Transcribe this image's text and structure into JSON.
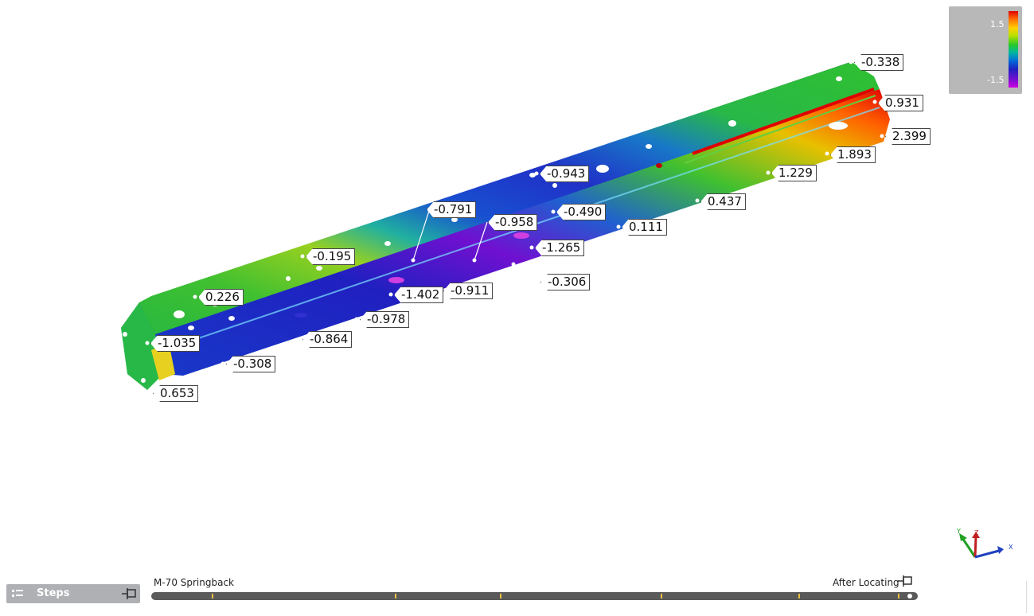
{
  "legend": {
    "max_label": "1.5",
    "min_label": "-1.5"
  },
  "callouts": [
    {
      "id": "c1",
      "value": "-0.338"
    },
    {
      "id": "c2",
      "value": "0.931"
    },
    {
      "id": "c3",
      "value": "2.399"
    },
    {
      "id": "c4",
      "value": "1.893"
    },
    {
      "id": "c5",
      "value": "1.229"
    },
    {
      "id": "c6",
      "value": "-0.943"
    },
    {
      "id": "c7",
      "value": "0.437"
    },
    {
      "id": "c8",
      "value": "-0.791"
    },
    {
      "id": "c9",
      "value": "-0.490"
    },
    {
      "id": "c10",
      "value": "-0.958"
    },
    {
      "id": "c11",
      "value": "0.111"
    },
    {
      "id": "c12",
      "value": "-1.265"
    },
    {
      "id": "c13",
      "value": "-0.195"
    },
    {
      "id": "c14",
      "value": "-0.306"
    },
    {
      "id": "c15",
      "value": "0.226"
    },
    {
      "id": "c16",
      "value": "-1.402"
    },
    {
      "id": "c17",
      "value": "-0.911"
    },
    {
      "id": "c18",
      "value": "-0.978"
    },
    {
      "id": "c19",
      "value": "-1.035"
    },
    {
      "id": "c20",
      "value": "-0.864"
    },
    {
      "id": "c21",
      "value": "-0.308"
    },
    {
      "id": "c22",
      "value": "0.653"
    }
  ],
  "steps_panel": {
    "label": "Steps"
  },
  "timeline": {
    "left_label": "M-70 Springback",
    "right_label": "After Locating"
  },
  "axis": {
    "x": "X",
    "y": "Y",
    "z": "Z"
  },
  "colors": {
    "deviation_high": "#e00000",
    "deviation_zero": "#28c828",
    "deviation_low": "#2020c0",
    "panel_grey": "#aeb0b3"
  }
}
